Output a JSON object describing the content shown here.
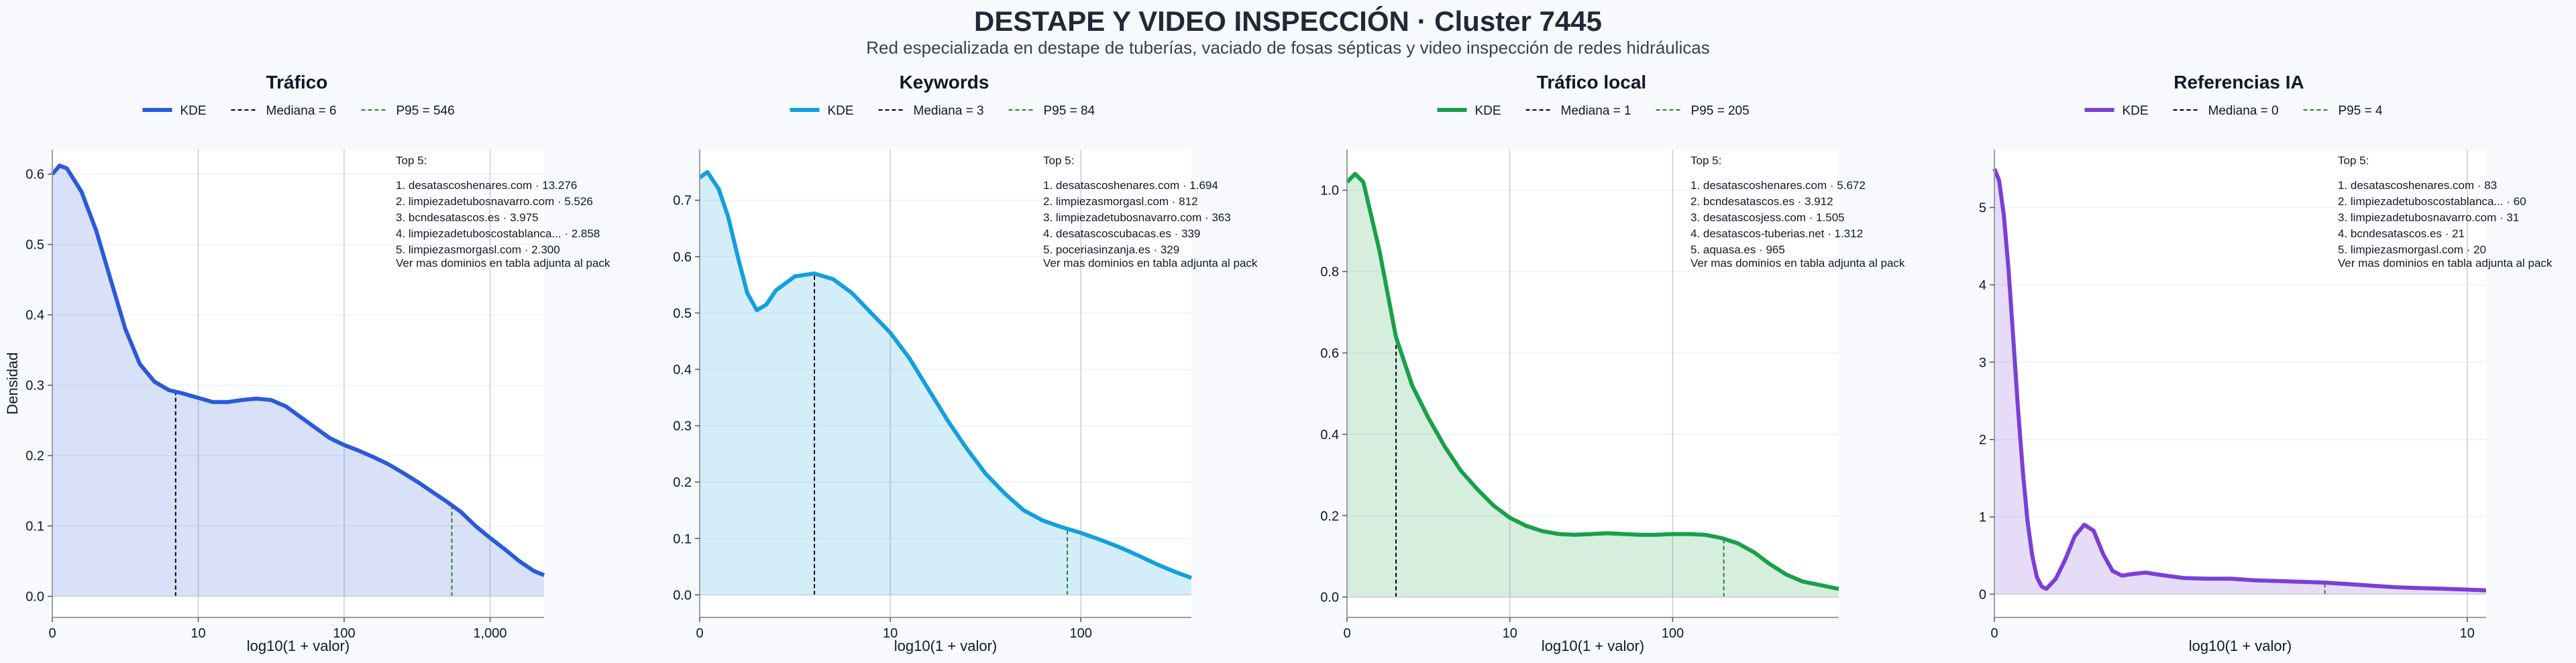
{
  "title": "DESTAPE Y VIDEO INSPECCIÓN · Cluster 7445",
  "subtitle": "Red especializada en destape de tuberías, vaciado de fosas sépticas y video inspección de redes hidráulicas",
  "colors": {
    "trafico": "#2a5bd7",
    "keywords": "#13a0dc",
    "trafico_local": "#18a04a",
    "referencias": "#7a3fd6",
    "median": "#000000",
    "p95": "#2e7d32"
  },
  "chart_data": [
    {
      "type": "area",
      "title": "Tráfico",
      "color_key": "trafico",
      "xlabel": "log10(1 + valor)",
      "ylabel": "Densidad",
      "xlim": [
        0,
        3.37
      ],
      "ylim": [
        -0.03,
        0.635
      ],
      "x_ticks": [
        {
          "v": 0,
          "label": "0"
        },
        {
          "v": 1,
          "label": "10"
        },
        {
          "v": 2,
          "label": "100"
        },
        {
          "v": 3,
          "label": "1,000"
        }
      ],
      "y_ticks": [
        {
          "v": 0,
          "label": "0.0"
        },
        {
          "v": 0.1,
          "label": "0.1"
        },
        {
          "v": 0.2,
          "label": "0.2"
        },
        {
          "v": 0.3,
          "label": "0.3"
        },
        {
          "v": 0.4,
          "label": "0.4"
        },
        {
          "v": 0.5,
          "label": "0.5"
        },
        {
          "v": 0.6,
          "label": "0.6"
        }
      ],
      "legend": [
        "KDE",
        "Mediana = 6",
        "P95 = 546"
      ],
      "median_x": 0.845,
      "p95_x": 2.738,
      "kde": {
        "x": [
          0,
          0.05,
          0.1,
          0.2,
          0.3,
          0.4,
          0.5,
          0.6,
          0.7,
          0.8,
          0.9,
          1.0,
          1.1,
          1.2,
          1.3,
          1.4,
          1.5,
          1.6,
          1.7,
          1.8,
          1.9,
          2.0,
          2.1,
          2.2,
          2.3,
          2.4,
          2.5,
          2.6,
          2.7,
          2.8,
          2.9,
          3.0,
          3.1,
          3.2,
          3.3,
          3.37
        ],
        "y": [
          0.6,
          0.612,
          0.608,
          0.575,
          0.52,
          0.45,
          0.38,
          0.33,
          0.305,
          0.293,
          0.288,
          0.282,
          0.276,
          0.276,
          0.279,
          0.281,
          0.279,
          0.27,
          0.255,
          0.24,
          0.225,
          0.215,
          0.207,
          0.198,
          0.188,
          0.176,
          0.163,
          0.149,
          0.135,
          0.12,
          0.1,
          0.083,
          0.067,
          0.05,
          0.036,
          0.03
        ]
      },
      "top5": {
        "header": "Top 5:",
        "items": [
          "1. desatascoshenares.com · 13.276",
          "2. limpiezadetubosnavarro.com · 5.526",
          "3. bcndesatascos.es · 3.975",
          "4. limpiezadetuboscostablanca... · 2.858",
          "5. limpiezasmorgasl.com · 2.300"
        ],
        "footer": "Ver mas dominios en tabla adjunta al pack"
      }
    },
    {
      "type": "area",
      "title": "Keywords",
      "color_key": "keywords",
      "xlabel": "log10(1 + valor)",
      "ylabel": "",
      "xlim": [
        0,
        2.58
      ],
      "ylim": [
        -0.04,
        0.79
      ],
      "x_ticks": [
        {
          "v": 0,
          "label": "0"
        },
        {
          "v": 1,
          "label": "10"
        },
        {
          "v": 2,
          "label": "100"
        }
      ],
      "y_ticks": [
        {
          "v": 0,
          "label": "0.0"
        },
        {
          "v": 0.1,
          "label": "0.1"
        },
        {
          "v": 0.2,
          "label": "0.2"
        },
        {
          "v": 0.3,
          "label": "0.3"
        },
        {
          "v": 0.4,
          "label": "0.4"
        },
        {
          "v": 0.5,
          "label": "0.5"
        },
        {
          "v": 0.6,
          "label": "0.6"
        },
        {
          "v": 0.7,
          "label": "0.7"
        }
      ],
      "legend": [
        "KDE",
        "Mediana = 3",
        "P95 = 84"
      ],
      "median_x": 0.602,
      "p95_x": 1.929,
      "kde": {
        "x": [
          0,
          0.04,
          0.1,
          0.15,
          0.2,
          0.25,
          0.3,
          0.35,
          0.4,
          0.5,
          0.6,
          0.7,
          0.8,
          0.9,
          1.0,
          1.1,
          1.2,
          1.3,
          1.4,
          1.5,
          1.6,
          1.7,
          1.8,
          1.9,
          2.0,
          2.1,
          2.2,
          2.3,
          2.4,
          2.5,
          2.58
        ],
        "y": [
          0.74,
          0.75,
          0.72,
          0.67,
          0.6,
          0.535,
          0.505,
          0.515,
          0.54,
          0.565,
          0.57,
          0.56,
          0.535,
          0.5,
          0.465,
          0.42,
          0.365,
          0.31,
          0.26,
          0.215,
          0.18,
          0.15,
          0.132,
          0.12,
          0.11,
          0.098,
          0.085,
          0.07,
          0.054,
          0.04,
          0.03
        ]
      },
      "top5": {
        "header": "Top 5:",
        "items": [
          "1. desatascoshenares.com · 1.694",
          "2. limpiezasmorgasl.com · 812",
          "3. limpiezadetubosnavarro.com · 363",
          "4. desatascoscubacas.es · 339",
          "5. poceriasinzanja.es · 329"
        ],
        "footer": "Ver mas dominios en tabla adjunta al pack"
      }
    },
    {
      "type": "area",
      "title": "Tráfico local",
      "color_key": "trafico_local",
      "xlabel": "log10(1 + valor)",
      "ylabel": "",
      "xlim": [
        0,
        3.02
      ],
      "ylim": [
        -0.05,
        1.1
      ],
      "x_ticks": [
        {
          "v": 0,
          "label": "0"
        },
        {
          "v": 1,
          "label": "10"
        },
        {
          "v": 2,
          "label": "100"
        }
      ],
      "y_ticks": [
        {
          "v": 0,
          "label": "0.0"
        },
        {
          "v": 0.2,
          "label": "0.2"
        },
        {
          "v": 0.4,
          "label": "0.4"
        },
        {
          "v": 0.6,
          "label": "0.6"
        },
        {
          "v": 0.8,
          "label": "0.8"
        },
        {
          "v": 1.0,
          "label": "1.0"
        }
      ],
      "legend": [
        "KDE",
        "Mediana = 1",
        "P95 = 205"
      ],
      "median_x": 0.301,
      "p95_x": 2.314,
      "kde": {
        "x": [
          0,
          0.05,
          0.1,
          0.2,
          0.3,
          0.4,
          0.5,
          0.6,
          0.7,
          0.8,
          0.9,
          1.0,
          1.1,
          1.2,
          1.3,
          1.4,
          1.5,
          1.6,
          1.7,
          1.8,
          1.9,
          2.0,
          2.1,
          2.2,
          2.3,
          2.4,
          2.5,
          2.6,
          2.7,
          2.8,
          2.9,
          3.02
        ],
        "y": [
          1.02,
          1.04,
          1.02,
          0.85,
          0.64,
          0.52,
          0.44,
          0.37,
          0.31,
          0.265,
          0.225,
          0.195,
          0.175,
          0.162,
          0.155,
          0.153,
          0.155,
          0.157,
          0.155,
          0.153,
          0.153,
          0.155,
          0.155,
          0.153,
          0.145,
          0.132,
          0.11,
          0.08,
          0.055,
          0.038,
          0.03,
          0.02
        ]
      },
      "top5": {
        "header": "Top 5:",
        "items": [
          "1. desatascoshenares.com · 5.672",
          "2. bcndesatascos.es · 3.912",
          "3. desatascosjess.com · 1.505",
          "4. desatascos-tuberias.net · 1.312",
          "5. aquasa.es · 965"
        ],
        "footer": "Ver mas dominios en tabla adjunta al pack"
      }
    },
    {
      "type": "area",
      "title": "Referencias IA",
      "color_key": "referencias",
      "xlabel": "log10(1 + valor)",
      "ylabel": "",
      "xlim": [
        0,
        1.04
      ],
      "ylim": [
        -0.3,
        5.75
      ],
      "x_ticks": [
        {
          "v": 0,
          "label": "0"
        },
        {
          "v": 1,
          "label": "10"
        }
      ],
      "y_ticks": [
        {
          "v": 0,
          "label": "0"
        },
        {
          "v": 1,
          "label": "1"
        },
        {
          "v": 2,
          "label": "2"
        },
        {
          "v": 3,
          "label": "3"
        },
        {
          "v": 4,
          "label": "4"
        },
        {
          "v": 5,
          "label": "5"
        }
      ],
      "legend": [
        "KDE",
        "Mediana = 0",
        "P95 = 4"
      ],
      "median_x": 0,
      "p95_x": 0.699,
      "kde": {
        "x": [
          0,
          0.01,
          0.02,
          0.03,
          0.04,
          0.05,
          0.06,
          0.07,
          0.08,
          0.09,
          0.1,
          0.11,
          0.13,
          0.15,
          0.17,
          0.19,
          0.21,
          0.23,
          0.25,
          0.27,
          0.29,
          0.32,
          0.35,
          0.4,
          0.45,
          0.5,
          0.55,
          0.6,
          0.65,
          0.7,
          0.75,
          0.8,
          0.85,
          0.9,
          0.95,
          1.0,
          1.04
        ],
        "y": [
          5.5,
          5.35,
          4.9,
          4.2,
          3.3,
          2.4,
          1.6,
          0.95,
          0.5,
          0.22,
          0.1,
          0.07,
          0.2,
          0.45,
          0.75,
          0.9,
          0.82,
          0.52,
          0.3,
          0.24,
          0.26,
          0.28,
          0.25,
          0.21,
          0.2,
          0.2,
          0.18,
          0.17,
          0.16,
          0.15,
          0.13,
          0.11,
          0.09,
          0.08,
          0.07,
          0.06,
          0.05
        ]
      },
      "top5": {
        "header": "Top 5:",
        "items": [
          "1. desatascoshenares.com · 83",
          "2. limpiezadetuboscostablanca... · 60",
          "3. limpiezadetubosnavarro.com · 31",
          "4. bcndesatascos.es · 21",
          "5. limpiezasmorgasl.com · 20"
        ],
        "footer": "Ver mas dominios en tabla adjunta al pack"
      }
    }
  ]
}
